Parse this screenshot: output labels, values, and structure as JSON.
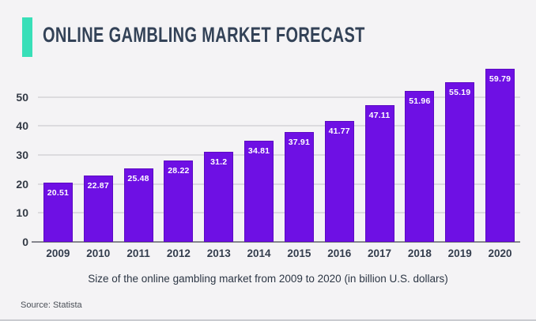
{
  "header": {
    "title": "ONLINE GAMBLING MARKET FORECAST",
    "accent_color": "#38dfb8"
  },
  "chart_data": {
    "type": "bar",
    "categories": [
      "2009",
      "2010",
      "2011",
      "2012",
      "2013",
      "2014",
      "2015",
      "2016",
      "2017",
      "2018",
      "2019",
      "2020"
    ],
    "values": [
      20.51,
      22.87,
      25.48,
      28.22,
      31.2,
      34.81,
      37.91,
      41.77,
      47.11,
      51.96,
      55.19,
      59.79
    ],
    "title": "ONLINE GAMBLING MARKET FORECAST",
    "xlabel": "",
    "ylabel": "",
    "ylim": [
      0,
      60
    ],
    "yticks": [
      0,
      10,
      20,
      30,
      40,
      50
    ],
    "grid": true,
    "legend": false,
    "bar_color": "#6e10e4",
    "bar_border_color": "#5c0ac2",
    "value_label_color": "#ffffff",
    "gridline_color": "#dcdbde"
  },
  "caption": "Size of the online gambling market from 2009 to 2020 (in billion U.S. dollars)",
  "source": "Source: Statista"
}
